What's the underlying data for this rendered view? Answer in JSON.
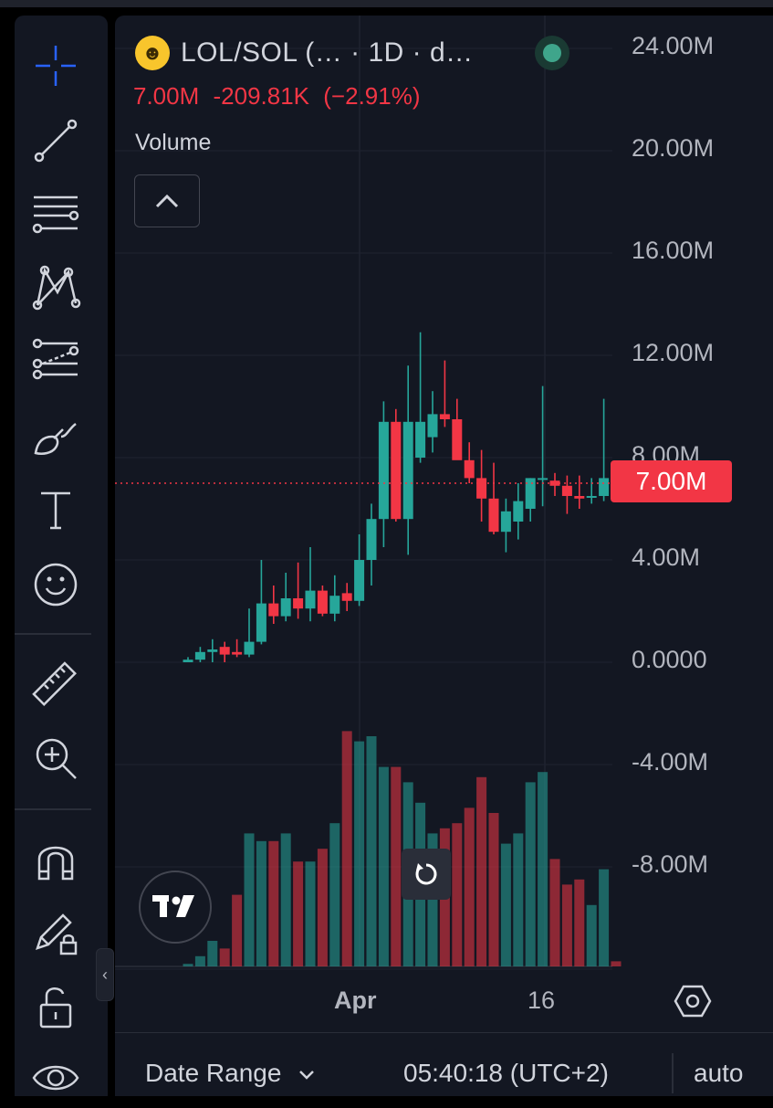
{
  "colors": {
    "background": "#131722",
    "up": "#26a69a",
    "down": "#f23645",
    "text": "#d1d4dc",
    "grid": "#1f2330",
    "crosshair_tool": "#2962ff"
  },
  "toolbar": {
    "tools": [
      {
        "name": "crosshair-icon",
        "active": true
      },
      {
        "name": "trend-line-icon"
      },
      {
        "name": "fib-retracement-icon"
      },
      {
        "name": "xabcd-pattern-icon"
      },
      {
        "name": "forecast-icon"
      },
      {
        "name": "brush-icon"
      },
      {
        "name": "text-icon"
      },
      {
        "name": "emoji-icon"
      },
      {
        "name": "ruler-icon"
      },
      {
        "name": "zoom-in-icon"
      },
      {
        "name": "magnet-icon"
      },
      {
        "name": "lock-drawing-icon"
      },
      {
        "name": "unlock-icon"
      },
      {
        "name": "eye-icon"
      }
    ]
  },
  "legend": {
    "symbol_icon": "grinning-face-emoji",
    "title": "LOL/SOL (… · 1D · d…",
    "status": "market-open",
    "price": "7.00M",
    "change": "-209.81K",
    "change_pct": "(−2.91%)",
    "volume_label": "Volume"
  },
  "price_axis": {
    "labels": [
      "24.00M",
      "20.00M",
      "16.00M",
      "12.00M",
      "8.00M",
      "4.00M",
      "0.0000",
      "-4.00M",
      "-8.00M"
    ],
    "current_price_tag": "7.00M"
  },
  "time_axis": {
    "labels": [
      "Apr",
      "16"
    ]
  },
  "bottom_bar": {
    "date_range": "Date Range",
    "clock": "05:40:18 (UTC+2)",
    "scale_mode": "auto"
  },
  "chart_data": {
    "type": "candlestick",
    "ylim": [
      -12.0,
      24.0
    ],
    "current_price": 7.0,
    "candles": [
      {
        "o": 0.0,
        "h": 0.2,
        "l": 0.0,
        "c": 0.1
      },
      {
        "o": 0.1,
        "h": 0.6,
        "l": 0.0,
        "c": 0.4
      },
      {
        "o": 0.4,
        "h": 0.9,
        "l": 0.0,
        "c": 0.5
      },
      {
        "o": 0.6,
        "h": 0.8,
        "l": 0.0,
        "c": 0.3
      },
      {
        "o": 0.4,
        "h": 0.9,
        "l": 0.2,
        "c": 0.3
      },
      {
        "o": 0.3,
        "h": 2.1,
        "l": 0.2,
        "c": 0.8
      },
      {
        "o": 0.8,
        "h": 4.0,
        "l": 0.7,
        "c": 2.3
      },
      {
        "o": 2.3,
        "h": 3.0,
        "l": 1.5,
        "c": 1.8
      },
      {
        "o": 1.8,
        "h": 3.5,
        "l": 1.6,
        "c": 2.5
      },
      {
        "o": 2.5,
        "h": 3.9,
        "l": 1.7,
        "c": 2.1
      },
      {
        "o": 2.1,
        "h": 4.5,
        "l": 1.6,
        "c": 2.8
      },
      {
        "o": 2.8,
        "h": 3.0,
        "l": 1.8,
        "c": 1.9
      },
      {
        "o": 1.9,
        "h": 3.4,
        "l": 1.6,
        "c": 2.6
      },
      {
        "o": 2.7,
        "h": 3.1,
        "l": 2.0,
        "c": 2.4
      },
      {
        "o": 2.4,
        "h": 5.0,
        "l": 2.2,
        "c": 4.0
      },
      {
        "o": 4.0,
        "h": 6.2,
        "l": 3.0,
        "c": 5.6
      },
      {
        "o": 5.6,
        "h": 10.2,
        "l": 4.5,
        "c": 9.4
      },
      {
        "o": 9.4,
        "h": 9.9,
        "l": 5.5,
        "c": 5.6
      },
      {
        "o": 5.6,
        "h": 11.6,
        "l": 4.2,
        "c": 9.4
      },
      {
        "o": 8.0,
        "h": 12.9,
        "l": 7.8,
        "c": 9.4
      },
      {
        "o": 8.8,
        "h": 10.6,
        "l": 8.2,
        "c": 9.7
      },
      {
        "o": 9.7,
        "h": 11.8,
        "l": 9.2,
        "c": 9.5
      },
      {
        "o": 9.5,
        "h": 10.3,
        "l": 8.0,
        "c": 7.9
      },
      {
        "o": 7.9,
        "h": 8.6,
        "l": 7.0,
        "c": 7.2
      },
      {
        "o": 7.2,
        "h": 8.3,
        "l": 5.5,
        "c": 6.4
      },
      {
        "o": 6.4,
        "h": 7.8,
        "l": 5.0,
        "c": 5.1
      },
      {
        "o": 5.1,
        "h": 6.4,
        "l": 4.3,
        "c": 5.9
      },
      {
        "o": 5.5,
        "h": 7.0,
        "l": 4.8,
        "c": 6.3
      },
      {
        "o": 6.0,
        "h": 7.2,
        "l": 5.5,
        "c": 7.2
      },
      {
        "o": 7.2,
        "h": 10.8,
        "l": 6.1,
        "c": 7.2
      },
      {
        "o": 7.1,
        "h": 7.4,
        "l": 6.5,
        "c": 6.9
      },
      {
        "o": 6.9,
        "h": 7.3,
        "l": 5.8,
        "c": 6.5
      },
      {
        "o": 6.5,
        "h": 7.3,
        "l": 6.0,
        "c": 6.4
      },
      {
        "o": 6.5,
        "h": 7.2,
        "l": 6.2,
        "c": 6.5
      },
      {
        "o": 6.5,
        "h": 10.3,
        "l": 6.3,
        "c": 7.2
      },
      {
        "o": 7.2,
        "h": 7.4,
        "l": 6.9,
        "c": 7.0
      }
    ],
    "volume": [
      0.05,
      0.2,
      0.5,
      0.35,
      1.4,
      2.6,
      2.45,
      2.45,
      2.6,
      2.05,
      2.05,
      2.3,
      2.8,
      4.6,
      4.4,
      4.5,
      3.9,
      3.9,
      3.6,
      3.2,
      2.6,
      2.7,
      2.8,
      3.1,
      3.7,
      3.0,
      2.4,
      2.6,
      3.6,
      3.8,
      2.1,
      1.6,
      1.7,
      1.2,
      1.9,
      0.1
    ]
  }
}
